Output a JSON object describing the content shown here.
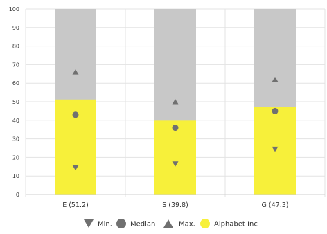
{
  "chart_data": {
    "type": "bar",
    "categories": [
      "E (51.2)",
      "S (39.8)",
      "G (47.3)"
    ],
    "ylim": [
      0,
      100
    ],
    "yticks": [
      0,
      10,
      20,
      30,
      40,
      50,
      60,
      70,
      80,
      90,
      100
    ],
    "grid": true,
    "range_max": 100,
    "series": [
      {
        "name": "Alphabet Inc",
        "values": [
          51.2,
          39.8,
          47.3
        ],
        "color": "#f7f03a"
      }
    ],
    "background_bar_color": "#c8c8c8",
    "markers": {
      "min": {
        "name": "Min.",
        "values": [
          14.5,
          16.5,
          24.5
        ],
        "color": "#707070"
      },
      "median": {
        "name": "Median",
        "values": [
          43,
          36,
          45
        ],
        "color": "#707070"
      },
      "max": {
        "name": "Max.",
        "values": [
          66,
          50,
          62
        ],
        "color": "#707070"
      }
    },
    "legend": {
      "placement": "bottom",
      "items": [
        {
          "label": "Min.",
          "icon": "triangle-down-icon"
        },
        {
          "label": "Median",
          "icon": "circle-icon"
        },
        {
          "label": "Max.",
          "icon": "triangle-up-icon"
        },
        {
          "label": "Alphabet Inc",
          "icon": "circle-yellow-icon"
        }
      ]
    }
  }
}
